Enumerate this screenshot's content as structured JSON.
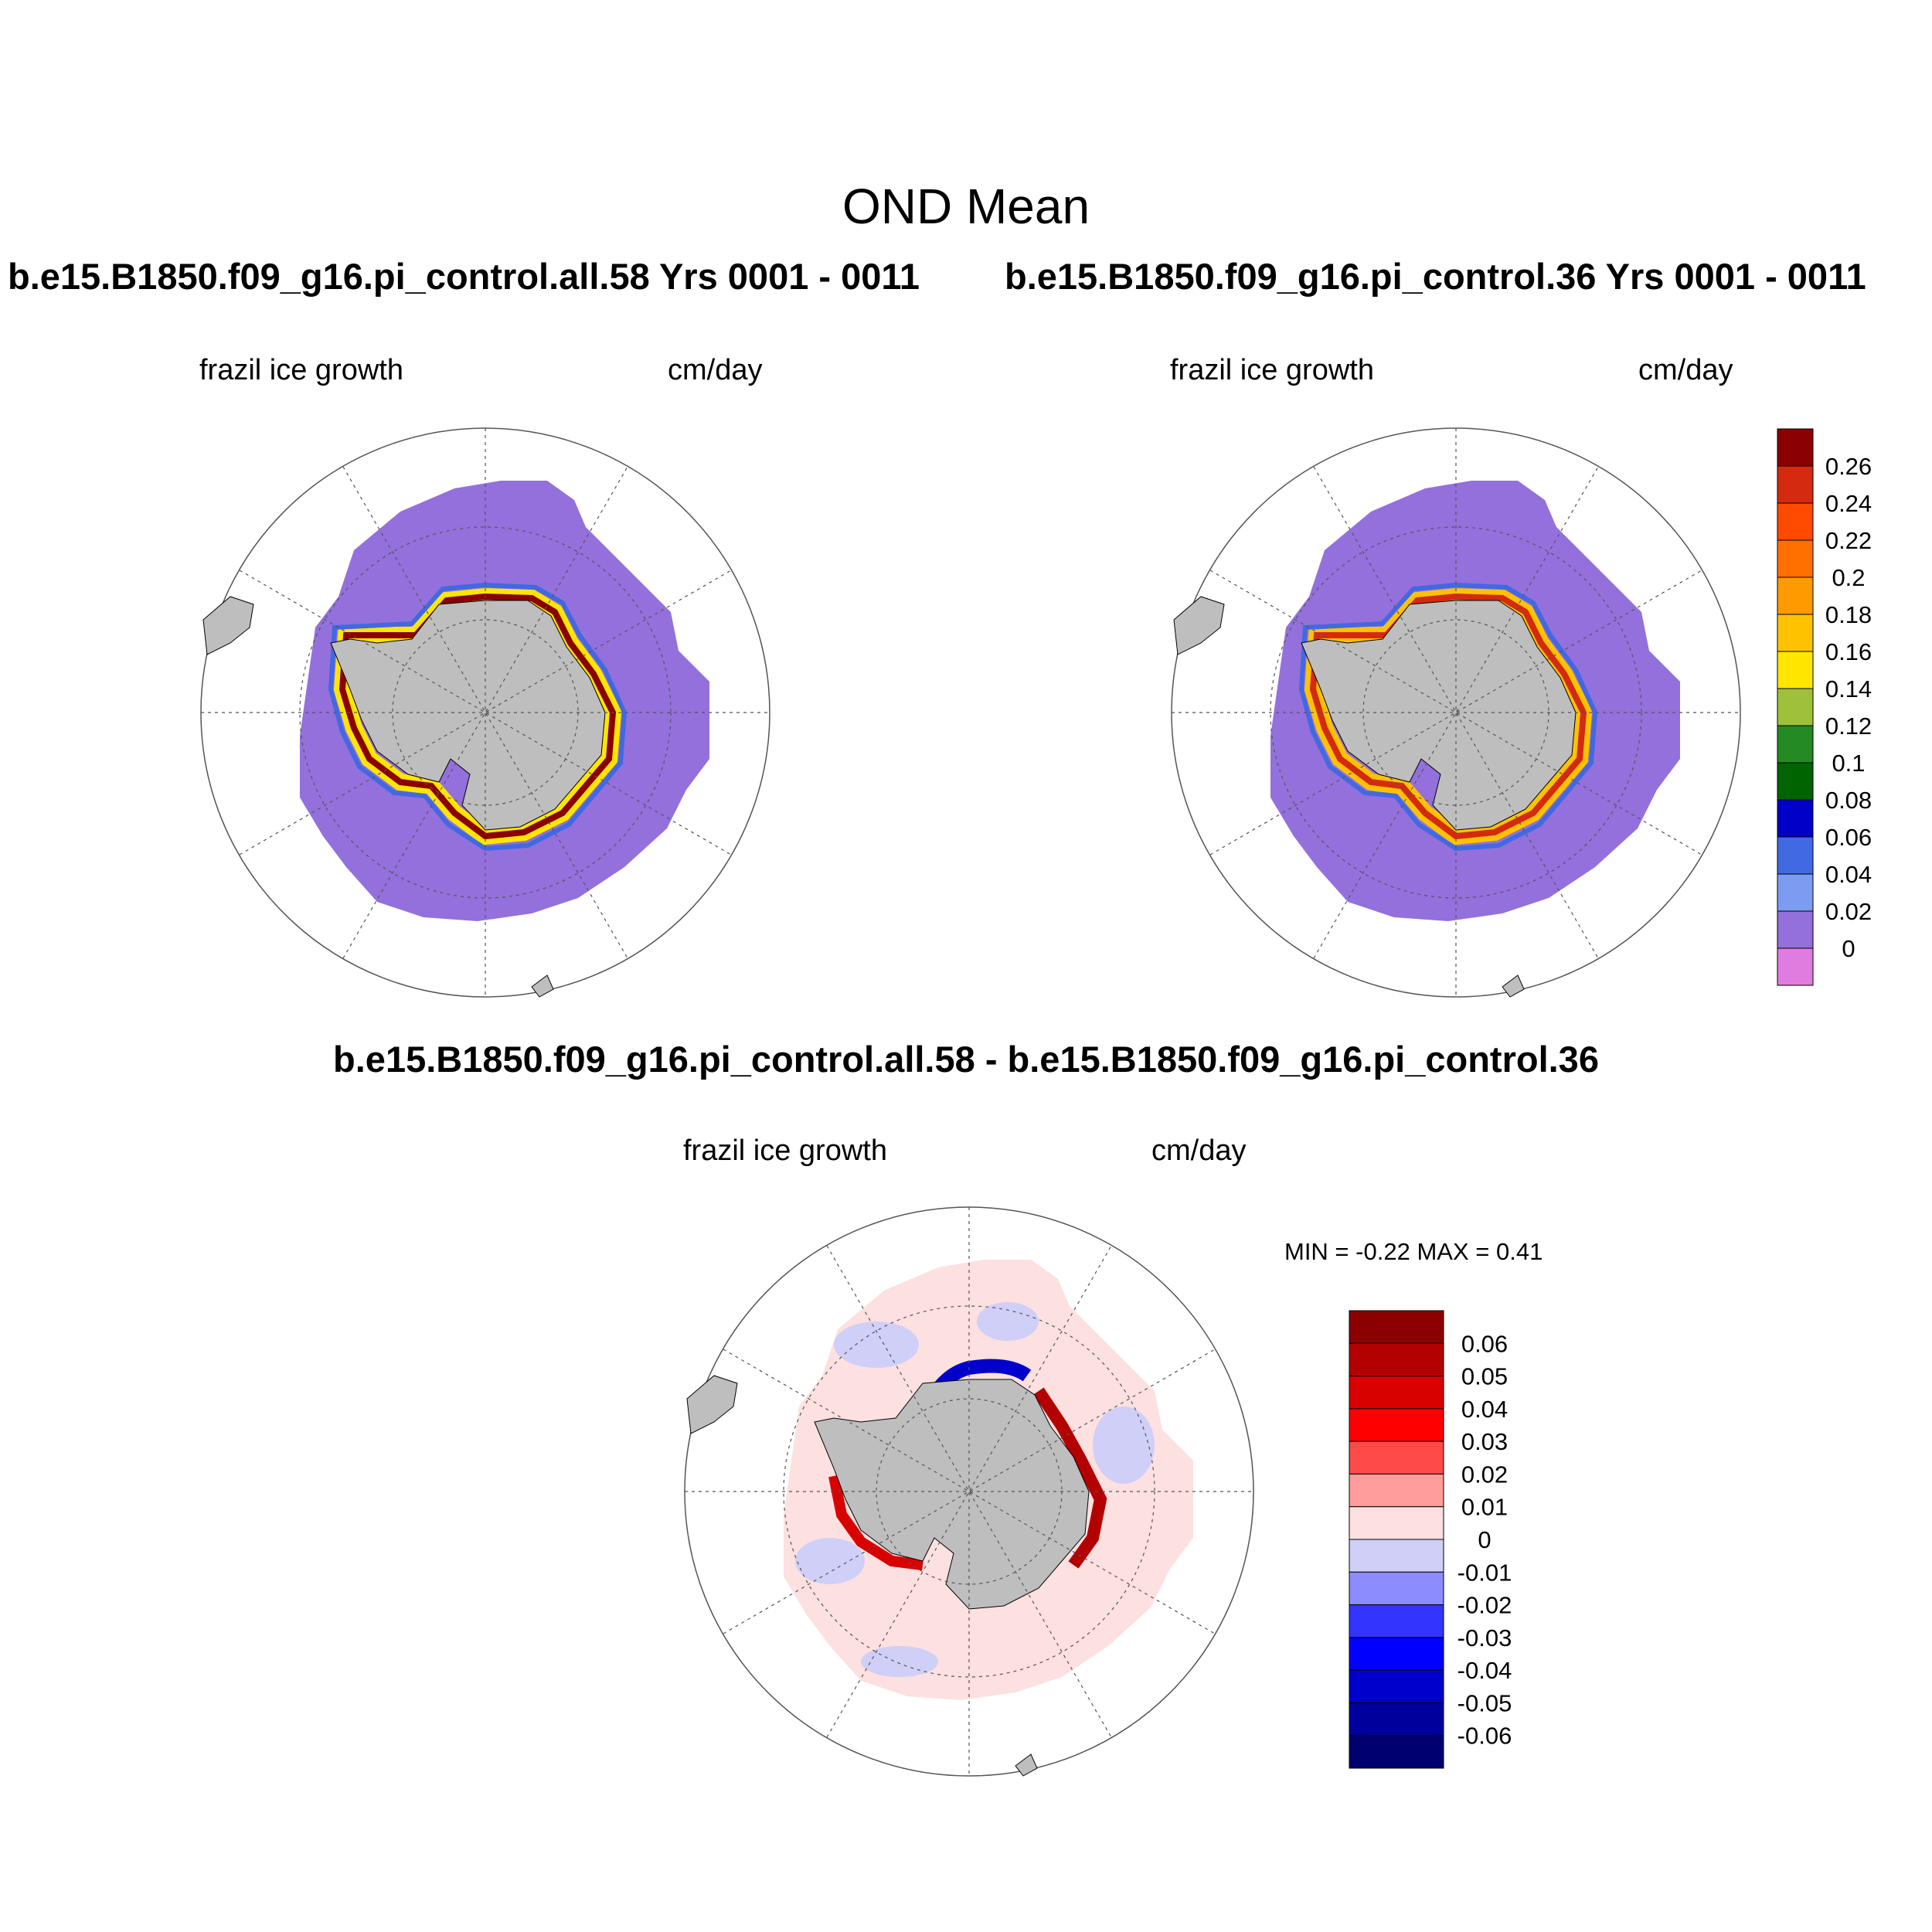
{
  "page": {
    "main_title": "OND Mean",
    "variable": "frazil ice growth",
    "units": "cm/day"
  },
  "panels": {
    "left": {
      "case_title": "b.e15.B1850.f09_g16.pi_control.all.58  Yrs 0001 - 0011"
    },
    "right": {
      "case_title": "b.e15.B1850.f09_g16.pi_control.36  Yrs 0001 - 0011"
    },
    "diff": {
      "title": "b.e15.B1850.f09_g16.pi_control.all.58 - b.e15.B1850.f09_g16.pi_control.36",
      "min_label": "MIN =",
      "min_value": "-0.22",
      "max_label": "MAX =",
      "max_value": "0.41"
    }
  },
  "colorbar_main": {
    "labels": [
      "0.26",
      "0.24",
      "0.22",
      "0.2",
      "0.18",
      "0.16",
      "0.14",
      "0.12",
      "0.1",
      "0.08",
      "0.06",
      "0.04",
      "0.02",
      "0"
    ],
    "colors": [
      "#8b0000",
      "#d42a10",
      "#ff4a00",
      "#ff7000",
      "#ff9a00",
      "#ffc200",
      "#ffe600",
      "#9ec03a",
      "#248a24",
      "#006400",
      "#0000c8",
      "#4169e1",
      "#7b9cf0",
      "#9370db",
      "#e07be0"
    ]
  },
  "colorbar_diff": {
    "labels": [
      "0.06",
      "0.05",
      "0.04",
      "0.03",
      "0.02",
      "0.01",
      "0",
      "-0.01",
      "-0.02",
      "-0.03",
      "-0.04",
      "-0.05",
      "-0.06"
    ],
    "colors": [
      "#8b0000",
      "#b30000",
      "#d90000",
      "#ff0000",
      "#ff4a4a",
      "#ff9c9c",
      "#fde0e0",
      "#cfcff8",
      "#8c8cff",
      "#3434ff",
      "#0000ff",
      "#0000cc",
      "#00009c",
      "#000070"
    ]
  },
  "map_colors": {
    "ocean_field": "#9370db",
    "diff_field": "#fde0e0",
    "land": "#bebebe"
  }
}
